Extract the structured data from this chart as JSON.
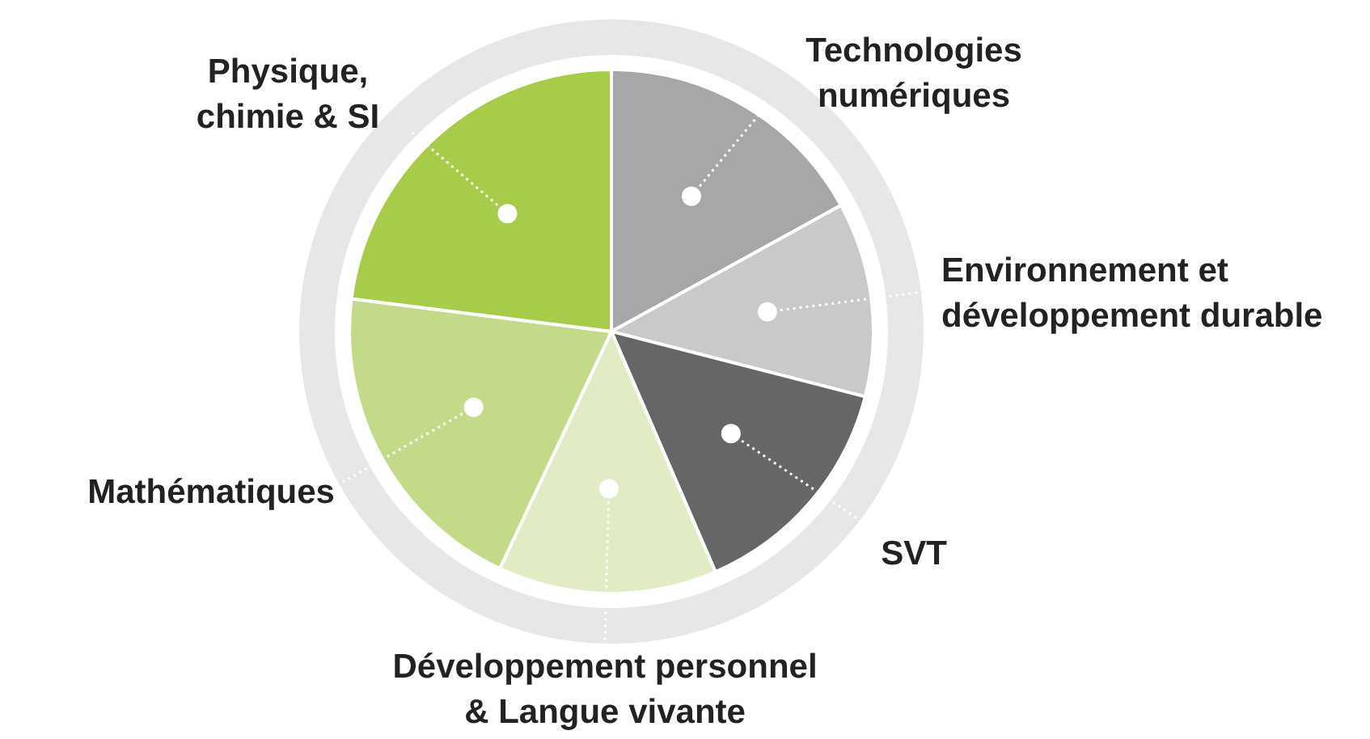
{
  "chart_data": {
    "type": "pie",
    "categories": [
      "Technologies numériques",
      "Environnement et développement durable",
      "SVT",
      "Développement personnel & Langue vivante",
      "Mathématiques",
      "Physique, chimie & SI"
    ],
    "values": [
      17,
      12,
      14.5,
      13.5,
      20,
      23
    ],
    "colors": [
      "#a6a7a9",
      "#c9c9cb",
      "#646766",
      "#e1ebc4",
      "#c3db88",
      "#a6cc4a"
    ],
    "legend": false
  }
}
